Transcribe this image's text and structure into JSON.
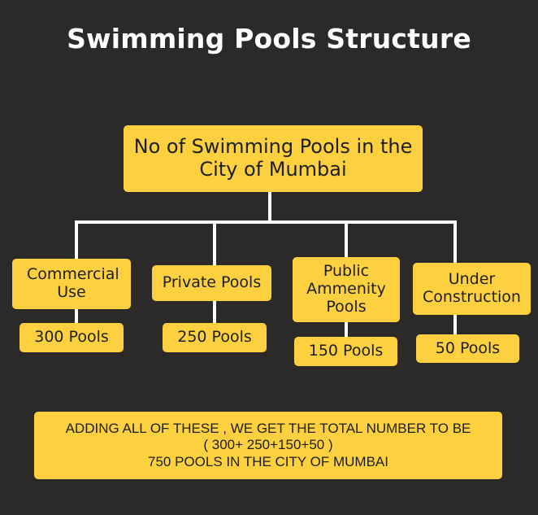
{
  "title": "Swimming Pools Structure",
  "root": {
    "label": "No of Swimming Pools in the City of Mumbai"
  },
  "categories": [
    {
      "label": "Commercial Use",
      "count": "300 Pools"
    },
    {
      "label": "Private Pools",
      "count": "250 Pools"
    },
    {
      "label": "Public Ammenity Pools",
      "count": "150 Pools"
    },
    {
      "label": "Under Construction",
      "count": "50 Pools"
    }
  ],
  "summary": {
    "line1": "ADDING ALL OF THESE , WE GET THE TOTAL NUMBER TO BE",
    "line2": "( 300+ 250+150+50 )",
    "line3": "750 POOLS IN THE CITY OF MUMBAI"
  },
  "colors": {
    "background": "#2b2a29",
    "box": "#fcd03f",
    "connector": "#ffffff",
    "title": "#ffffff"
  }
}
